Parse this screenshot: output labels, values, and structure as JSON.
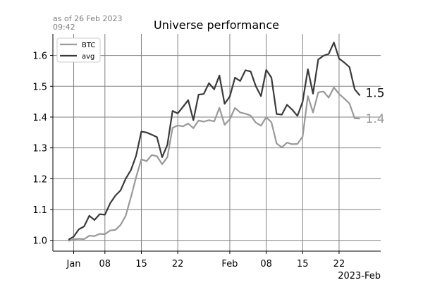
{
  "chart_data": {
    "type": "line",
    "title": "Universe performance",
    "subtitle_lines": [
      "as of 26 Feb 2023",
      "09:42"
    ],
    "x_tick_labels": [
      "Jan",
      "08",
      "15",
      "22",
      "Feb",
      "08",
      "15",
      "22"
    ],
    "x_tick_dates": [
      "2023-01-02",
      "2023-01-08",
      "2023-01-15",
      "2023-01-22",
      "2023-02-01",
      "2023-02-08",
      "2023-02-15",
      "2023-02-22"
    ],
    "x_offset_label": "2023-Feb",
    "xlim": [
      "2022-12-29",
      "2023-03-02"
    ],
    "ylim": [
      0.965,
      1.67
    ],
    "y_ticks": [
      1.0,
      1.1,
      1.2,
      1.3,
      1.4,
      1.5,
      1.6
    ],
    "y_tick_labels": [
      "1.0",
      "1.1",
      "1.2",
      "1.3",
      "1.4",
      "1.5",
      "1.6"
    ],
    "grid": true,
    "legend_position": "top-left",
    "series": [
      {
        "name": "BTC",
        "color": "#999999",
        "end_label": "1.4",
        "x": [
          "2023-01-01",
          "2023-01-02",
          "2023-01-03",
          "2023-01-04",
          "2023-01-05",
          "2023-01-06",
          "2023-01-07",
          "2023-01-08",
          "2023-01-09",
          "2023-01-10",
          "2023-01-11",
          "2023-01-12",
          "2023-01-13",
          "2023-01-14",
          "2023-01-15",
          "2023-01-16",
          "2023-01-17",
          "2023-01-18",
          "2023-01-19",
          "2023-01-20",
          "2023-01-21",
          "2023-01-22",
          "2023-01-23",
          "2023-01-24",
          "2023-01-25",
          "2023-01-26",
          "2023-01-27",
          "2023-01-28",
          "2023-01-29",
          "2023-01-30",
          "2023-01-31",
          "2023-02-01",
          "2023-02-02",
          "2023-02-03",
          "2023-02-04",
          "2023-02-05",
          "2023-02-06",
          "2023-02-07",
          "2023-02-08",
          "2023-02-09",
          "2023-02-10",
          "2023-02-11",
          "2023-02-12",
          "2023-02-13",
          "2023-02-14",
          "2023-02-15",
          "2023-02-16",
          "2023-02-17",
          "2023-02-18",
          "2023-02-19",
          "2023-02-20",
          "2023-02-21",
          "2023-02-22",
          "2023-02-23",
          "2023-02-24",
          "2023-02-25",
          "2023-02-26"
        ],
        "values": [
          0.998,
          1.003,
          1.005,
          1.004,
          1.015,
          1.014,
          1.021,
          1.02,
          1.032,
          1.034,
          1.05,
          1.08,
          1.14,
          1.205,
          1.263,
          1.257,
          1.277,
          1.273,
          1.247,
          1.27,
          1.365,
          1.373,
          1.37,
          1.379,
          1.364,
          1.389,
          1.385,
          1.39,
          1.386,
          1.43,
          1.375,
          1.393,
          1.43,
          1.415,
          1.411,
          1.405,
          1.382,
          1.372,
          1.4,
          1.383,
          1.314,
          1.302,
          1.317,
          1.312,
          1.313,
          1.337,
          1.468,
          1.415,
          1.48,
          1.483,
          1.463,
          1.496,
          1.475,
          1.46,
          1.444,
          1.396,
          1.395
        ]
      },
      {
        "name": "avg",
        "color": "#3a3a3a",
        "end_label": "1.5",
        "x": [
          "2023-01-01",
          "2023-01-02",
          "2023-01-03",
          "2023-01-04",
          "2023-01-05",
          "2023-01-06",
          "2023-01-07",
          "2023-01-08",
          "2023-01-09",
          "2023-01-10",
          "2023-01-11",
          "2023-01-12",
          "2023-01-13",
          "2023-01-14",
          "2023-01-15",
          "2023-01-16",
          "2023-01-17",
          "2023-01-18",
          "2023-01-19",
          "2023-01-20",
          "2023-01-21",
          "2023-01-22",
          "2023-01-23",
          "2023-01-24",
          "2023-01-25",
          "2023-01-26",
          "2023-01-27",
          "2023-01-28",
          "2023-01-29",
          "2023-01-30",
          "2023-01-31",
          "2023-02-01",
          "2023-02-02",
          "2023-02-03",
          "2023-02-04",
          "2023-02-05",
          "2023-02-06",
          "2023-02-07",
          "2023-02-08",
          "2023-02-09",
          "2023-02-10",
          "2023-02-11",
          "2023-02-12",
          "2023-02-13",
          "2023-02-14",
          "2023-02-15",
          "2023-02-16",
          "2023-02-17",
          "2023-02-18",
          "2023-02-19",
          "2023-02-20",
          "2023-02-21",
          "2023-02-22",
          "2023-02-23",
          "2023-02-24",
          "2023-02-25",
          "2023-02-26"
        ],
        "values": [
          1.002,
          1.012,
          1.036,
          1.045,
          1.08,
          1.066,
          1.085,
          1.083,
          1.12,
          1.145,
          1.162,
          1.2,
          1.228,
          1.275,
          1.353,
          1.35,
          1.343,
          1.335,
          1.27,
          1.31,
          1.42,
          1.412,
          1.433,
          1.455,
          1.39,
          1.473,
          1.475,
          1.51,
          1.49,
          1.535,
          1.443,
          1.467,
          1.528,
          1.517,
          1.552,
          1.548,
          1.5,
          1.468,
          1.553,
          1.528,
          1.41,
          1.408,
          1.44,
          1.424,
          1.404,
          1.45,
          1.555,
          1.476,
          1.587,
          1.599,
          1.605,
          1.642,
          1.59,
          1.577,
          1.562,
          1.49,
          1.47
        ]
      }
    ]
  }
}
